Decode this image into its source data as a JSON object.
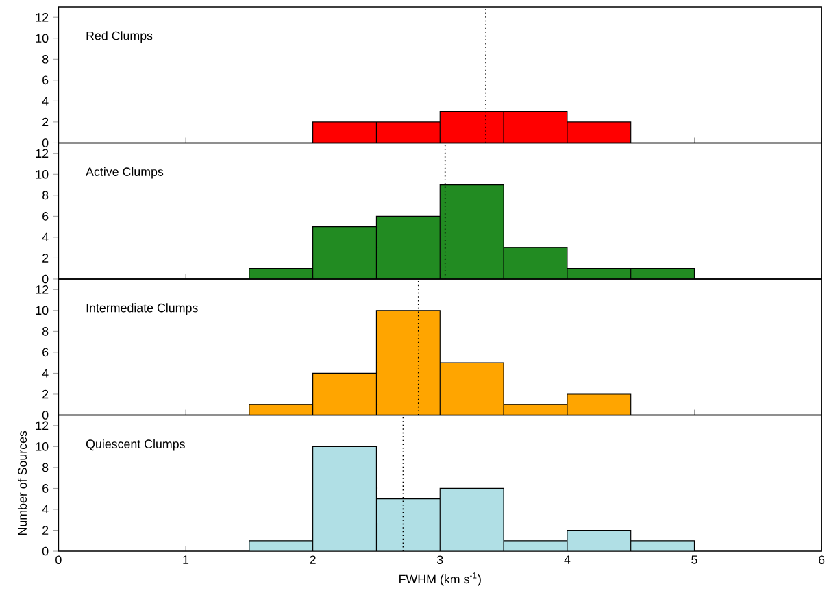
{
  "chart_data": [
    {
      "type": "histogram",
      "title": "Red Clumps",
      "bins": [
        2,
        2.5,
        3,
        3.5,
        4,
        4.5
      ],
      "values": [
        2,
        2,
        3,
        3,
        2
      ],
      "color": "#ff0000",
      "xlim": [
        0,
        6
      ],
      "ylim": [
        0,
        13
      ],
      "xticks": [
        0,
        1,
        2,
        3,
        4,
        5,
        6
      ],
      "yticks": [
        0,
        2,
        4,
        6,
        8,
        10,
        12
      ],
      "tick_labels": "y",
      "ref_lines": [
        {
          "axis": "x",
          "value": 3.36,
          "line_style": "dotted"
        }
      ]
    },
    {
      "type": "histogram",
      "title": "Active Clumps",
      "bins": [
        1.5,
        2,
        2.5,
        3,
        3.5,
        4,
        4.5,
        5
      ],
      "values": [
        1,
        5,
        6,
        9,
        3,
        1,
        1
      ],
      "color": "#228b22",
      "xlim": [
        0,
        6
      ],
      "ylim": [
        0,
        13
      ],
      "xticks": [
        0,
        1,
        2,
        3,
        4,
        5,
        6
      ],
      "yticks": [
        0,
        2,
        4,
        6,
        8,
        10,
        12
      ],
      "tick_labels": "y",
      "ref_lines": [
        {
          "axis": "x",
          "value": 3.04,
          "line_style": "dotted"
        }
      ]
    },
    {
      "type": "histogram",
      "title": "Intermediate Clumps",
      "bins": [
        1.5,
        2,
        2.5,
        3,
        3.5,
        4,
        4.5
      ],
      "values": [
        1,
        4,
        10,
        5,
        1,
        2
      ],
      "color": "#ffa500",
      "xlim": [
        0,
        6
      ],
      "ylim": [
        0,
        13
      ],
      "xticks": [
        0,
        1,
        2,
        3,
        4,
        5,
        6
      ],
      "yticks": [
        0,
        2,
        4,
        6,
        8,
        10,
        12
      ],
      "tick_labels": "y",
      "ref_lines": [
        {
          "axis": "x",
          "value": 2.83,
          "line_style": "dotted"
        }
      ]
    },
    {
      "type": "histogram",
      "title": "Quiescent Clumps",
      "xlabel": "FWHM (km s$^{-1}$)",
      "ylabel": "Number of Sources",
      "bins": [
        1.5,
        2,
        2.5,
        3,
        3.5,
        4,
        4.5,
        5
      ],
      "values": [
        1,
        10,
        5,
        6,
        1,
        2,
        1
      ],
      "color": "#b0dfe5",
      "xlim": [
        0,
        6
      ],
      "ylim": [
        0,
        13
      ],
      "xticks": [
        0,
        1,
        2,
        3,
        4,
        5,
        6
      ],
      "yticks": [
        0,
        2,
        4,
        6,
        8,
        10,
        12
      ],
      "ref_lines": [
        {
          "axis": "x",
          "value": 2.71,
          "line_style": "dotted"
        }
      ]
    }
  ]
}
